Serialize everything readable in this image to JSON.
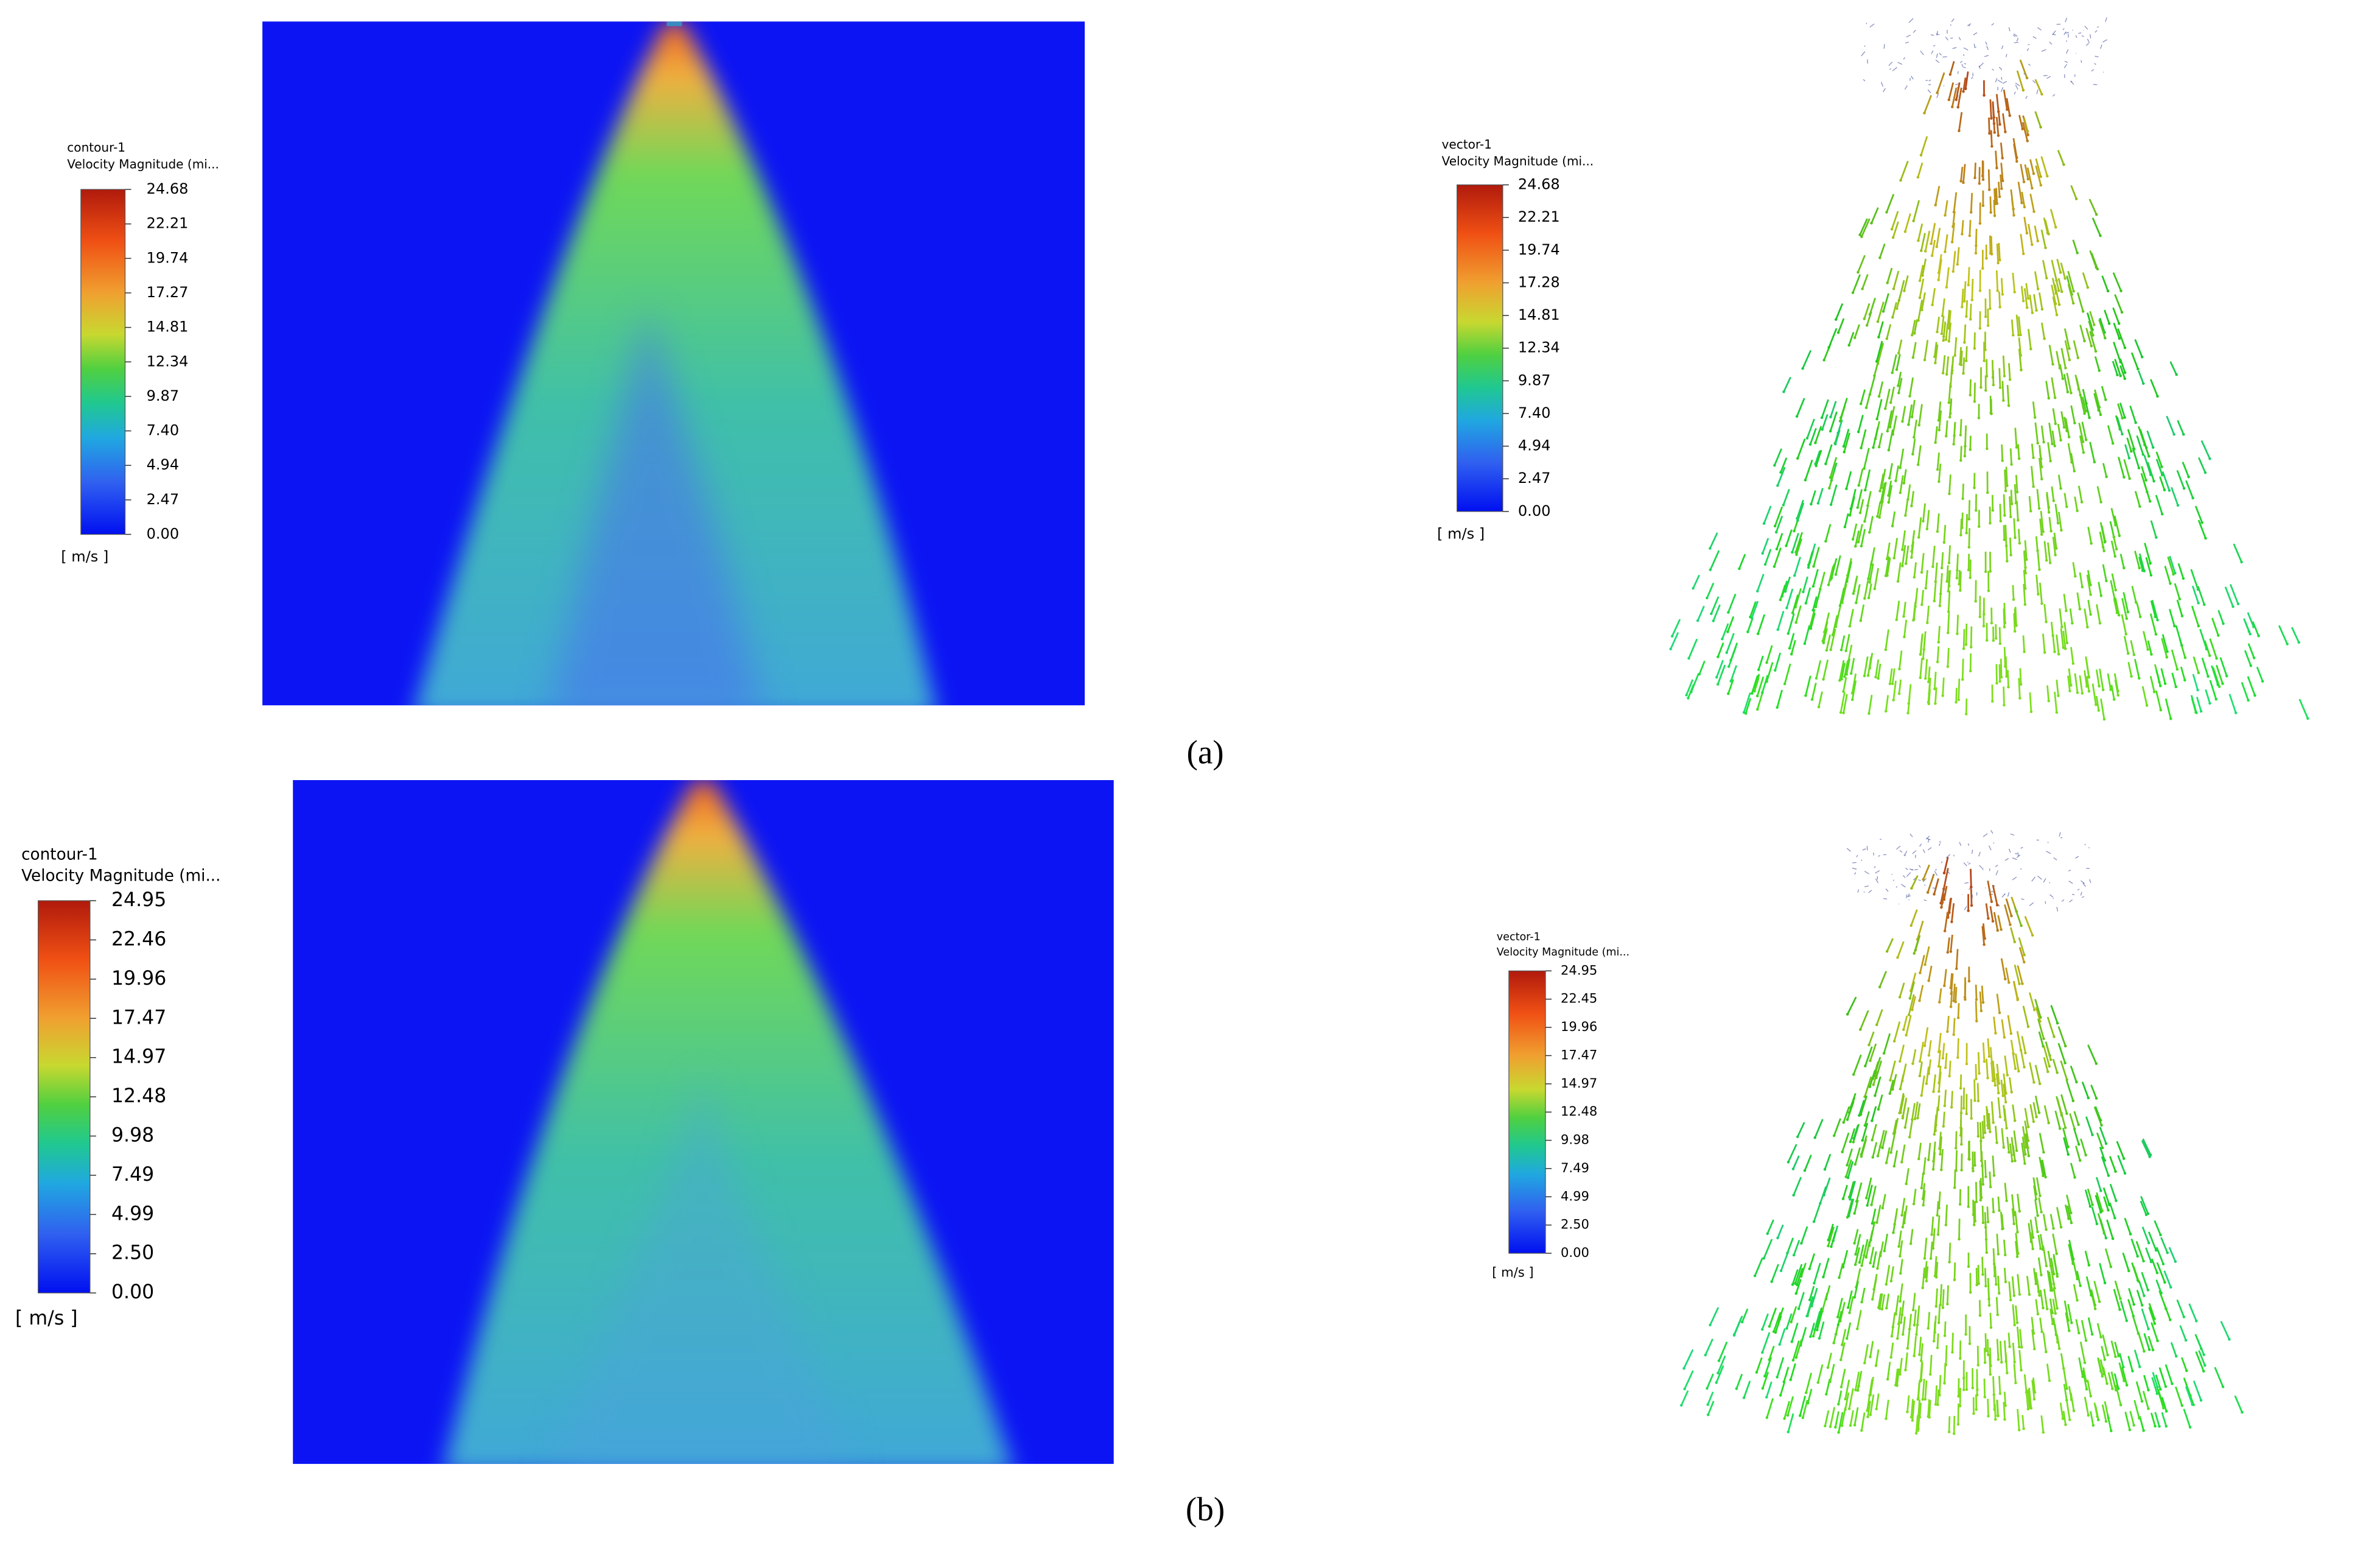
{
  "panels": [
    {
      "label": "(a)",
      "contour": {
        "title": "contour-1",
        "quantity": "Velocity Magnitude (mi...",
        "ticks": [
          "24.68",
          "22.21",
          "19.74",
          "17.27",
          "14.81",
          "12.34",
          "9.87",
          "7.40",
          "4.94",
          "2.47",
          "0.00"
        ],
        "unit": "[ m/s ]"
      },
      "vector": {
        "title": "vector-1",
        "quantity": "Velocity Magnitude (mi...",
        "ticks": [
          "24.68",
          "22.21",
          "19.74",
          "17.28",
          "14.81",
          "12.34",
          "9.87",
          "7.40",
          "4.94",
          "2.47",
          "0.00"
        ],
        "unit": "[ m/s ]"
      }
    },
    {
      "label": "(b)",
      "contour": {
        "title": "contour-1",
        "quantity": "Velocity Magnitude (mi...",
        "ticks": [
          "24.95",
          "22.46",
          "19.96",
          "17.47",
          "14.97",
          "12.48",
          "9.98",
          "7.49",
          "4.99",
          "2.50",
          "0.00"
        ],
        "unit": "[ m/s ]"
      },
      "vector": {
        "title": "vector-1",
        "quantity": "Velocity Magnitude (mi...",
        "ticks": [
          "24.95",
          "22.45",
          "19.96",
          "17.47",
          "14.97",
          "12.48",
          "9.98",
          "7.49",
          "4.99",
          "2.50",
          "0.00"
        ],
        "unit": "[ m/s ]"
      }
    }
  ]
}
